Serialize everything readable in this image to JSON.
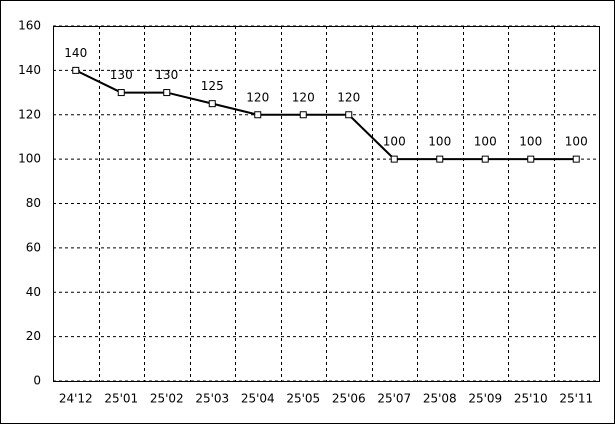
{
  "chart_data": {
    "type": "line",
    "categories": [
      "24'12",
      "25'01",
      "25'02",
      "25'03",
      "25'04",
      "25'05",
      "25'06",
      "25'07",
      "25'08",
      "25'09",
      "25'10",
      "25'11"
    ],
    "values": [
      140,
      130,
      130,
      125,
      120,
      120,
      120,
      100,
      100,
      100,
      100,
      100
    ],
    "color": "#000000",
    "ylim": [
      0,
      160
    ],
    "yticks": [
      0,
      20,
      40,
      60,
      80,
      100,
      120,
      140,
      160
    ],
    "grid": true
  }
}
